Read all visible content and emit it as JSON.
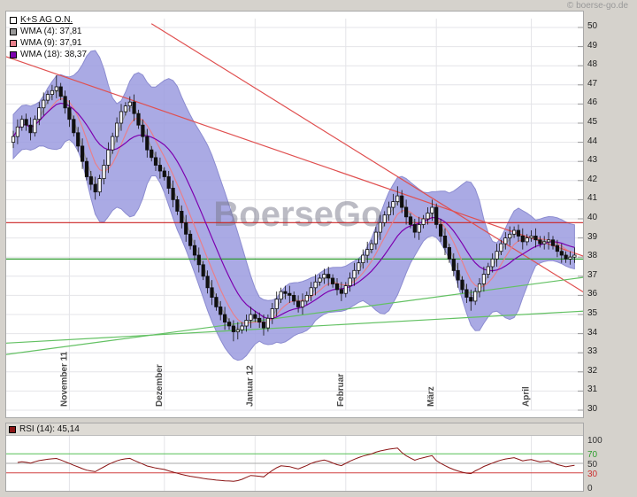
{
  "header": {
    "copyright": "© boerse-go.de"
  },
  "watermark": "BoerseGo",
  "legend": {
    "items": [
      {
        "label": "K+S AG O.N.",
        "color": "#ffffff"
      },
      {
        "label": "WMA (4): 37,81",
        "color": "#999999"
      },
      {
        "label": "WMA (9): 37,91",
        "color": "#e8808c"
      },
      {
        "label": "WMA (18): 38,37",
        "color": "#7d00af"
      }
    ]
  },
  "rsi_legend": {
    "label": "RSI (14): 45,14",
    "color": "#8b1515"
  },
  "chart_data": {
    "type": "candlestick",
    "title": "K+S AG O.N.",
    "y_axis": {
      "min": 30,
      "max": 50,
      "ticks": [
        50,
        49,
        48,
        47,
        46,
        45,
        44,
        43,
        42,
        41,
        40,
        39,
        38,
        37,
        36,
        35,
        34,
        33,
        32,
        31,
        30
      ]
    },
    "x_axis": {
      "months": [
        {
          "label": "November 11",
          "day": 13
        },
        {
          "label": "Dezember",
          "day": 35
        },
        {
          "label": "Januar 12",
          "day": 56
        },
        {
          "label": "Februar",
          "day": 77
        },
        {
          "label": "März",
          "day": 98
        },
        {
          "label": "April",
          "day": 120
        }
      ]
    },
    "band": {
      "kind": "volatility-envelope",
      "color": "#9b9bdf"
    },
    "wma": [
      {
        "period": 4,
        "color": "#999999",
        "value_label": "37,81"
      },
      {
        "period": 9,
        "color": "#e8808c",
        "value_label": "37,91"
      },
      {
        "period": 18,
        "color": "#7d00af",
        "value_label": "38,37"
      }
    ],
    "trendlines": [
      {
        "d1": -2,
        "p1": 39.8,
        "d2": 134,
        "p2": 39.8,
        "color": "#cc2222"
      },
      {
        "d1": -2,
        "p1": 48.5,
        "d2": 134,
        "p2": 37.9,
        "color": "#e05050"
      },
      {
        "d1": 32,
        "p1": 50.2,
        "d2": 134,
        "p2": 35.9,
        "color": "#e05050"
      },
      {
        "d1": -2,
        "p1": 37.9,
        "d2": 134,
        "p2": 37.9,
        "color": "#2d9b2d"
      },
      {
        "d1": -2,
        "p1": 33.5,
        "d2": 134,
        "p2": 35.2,
        "color": "#63c163"
      },
      {
        "d1": -2,
        "p1": 32.9,
        "d2": 134,
        "p2": 37.0,
        "color": "#63c163"
      }
    ],
    "rsi": {
      "period": 14,
      "current_label": "45,14",
      "ticks": [
        {
          "value": 100,
          "color": "#333333"
        },
        {
          "value": 70,
          "color": "#2e9e2e"
        },
        {
          "value": 50,
          "color": "#333333"
        },
        {
          "value": 30,
          "color": "#cc3030"
        },
        {
          "value": 0,
          "color": "#333333"
        }
      ],
      "lines": [
        {
          "value": 70,
          "color": "#57c057"
        },
        {
          "value": 50,
          "color": "#aaaaaa"
        },
        {
          "value": 30,
          "color": "#d04040"
        }
      ]
    },
    "ohlc": [
      [
        44.0,
        44.6,
        43.7,
        44.3
      ],
      [
        44.3,
        45.2,
        43.9,
        44.8
      ],
      [
        44.8,
        45.4,
        44.6,
        45.2
      ],
      [
        45.2,
        45.5,
        44.6,
        44.9
      ],
      [
        44.9,
        45.3,
        44.1,
        44.5
      ],
      [
        44.5,
        45.4,
        44.3,
        45.2
      ],
      [
        45.2,
        46.1,
        44.9,
        45.8
      ],
      [
        45.8,
        46.6,
        45.4,
        46.2
      ],
      [
        46.2,
        46.7,
        46.0,
        46.5
      ],
      [
        46.5,
        47.0,
        46.2,
        46.7
      ],
      [
        46.7,
        47.5,
        46.3,
        46.9
      ],
      [
        46.9,
        47.1,
        46.2,
        46.4
      ],
      [
        46.4,
        46.7,
        45.5,
        45.8
      ],
      [
        45.8,
        46.2,
        44.8,
        45.2
      ],
      [
        45.2,
        45.4,
        44.3,
        44.5
      ],
      [
        44.5,
        44.8,
        43.5,
        43.8
      ],
      [
        43.8,
        44.2,
        42.6,
        43.0
      ],
      [
        43.0,
        43.2,
        42.0,
        42.2
      ],
      [
        42.2,
        42.5,
        41.5,
        41.8
      ],
      [
        41.8,
        42.2,
        41.0,
        41.4
      ],
      [
        41.4,
        42.3,
        41.2,
        42.1
      ],
      [
        42.1,
        43.1,
        41.8,
        42.8
      ],
      [
        42.8,
        44.0,
        42.4,
        43.6
      ],
      [
        43.6,
        44.5,
        43.4,
        44.3
      ],
      [
        44.3,
        45.3,
        44.0,
        45.0
      ],
      [
        45.0,
        46.0,
        44.6,
        45.6
      ],
      [
        45.6,
        46.1,
        45.4,
        45.9
      ],
      [
        45.9,
        46.4,
        45.6,
        46.1
      ],
      [
        46.1,
        46.5,
        45.1,
        45.5
      ],
      [
        45.5,
        45.7,
        44.7,
        44.9
      ],
      [
        44.9,
        45.2,
        44.0,
        44.3
      ],
      [
        44.3,
        44.7,
        43.2,
        43.6
      ],
      [
        43.6,
        43.8,
        43.0,
        43.2
      ],
      [
        43.2,
        43.5,
        42.5,
        42.8
      ],
      [
        42.8,
        43.2,
        42.1,
        42.5
      ],
      [
        42.5,
        42.7,
        42.0,
        42.2
      ],
      [
        42.2,
        42.5,
        41.3,
        41.6
      ],
      [
        41.6,
        42.0,
        40.6,
        41.0
      ],
      [
        41.0,
        41.2,
        40.2,
        40.4
      ],
      [
        40.4,
        40.7,
        39.5,
        39.8
      ],
      [
        39.8,
        40.2,
        38.8,
        39.2
      ],
      [
        39.2,
        39.4,
        38.4,
        38.6
      ],
      [
        38.6,
        38.9,
        37.8,
        38.1
      ],
      [
        38.1,
        38.5,
        37.2,
        37.6
      ],
      [
        37.6,
        37.8,
        36.8,
        37.0
      ],
      [
        37.0,
        37.3,
        36.1,
        36.4
      ],
      [
        36.4,
        36.8,
        35.5,
        35.9
      ],
      [
        35.9,
        36.1,
        35.2,
        35.4
      ],
      [
        35.4,
        35.7,
        34.7,
        35.0
      ],
      [
        35.0,
        35.4,
        34.2,
        34.6
      ],
      [
        34.6,
        34.8,
        34.2,
        34.4
      ],
      [
        34.4,
        34.7,
        33.6,
        34.1
      ],
      [
        34.1,
        34.6,
        33.7,
        34.2
      ],
      [
        34.2,
        34.6,
        34.0,
        34.4
      ],
      [
        34.4,
        35.0,
        34.1,
        34.7
      ],
      [
        34.7,
        35.4,
        34.3,
        35.0
      ],
      [
        35.0,
        35.2,
        34.6,
        34.8
      ],
      [
        34.8,
        35.1,
        34.3,
        34.6
      ],
      [
        34.6,
        35.0,
        33.9,
        34.3
      ],
      [
        34.3,
        35.0,
        34.1,
        34.8
      ],
      [
        34.8,
        35.6,
        34.5,
        35.3
      ],
      [
        35.3,
        36.2,
        34.9,
        35.8
      ],
      [
        35.8,
        36.4,
        35.6,
        36.2
      ],
      [
        36.2,
        36.5,
        35.8,
        36.1
      ],
      [
        36.1,
        36.5,
        35.6,
        36.0
      ],
      [
        36.0,
        36.2,
        35.5,
        35.7
      ],
      [
        35.7,
        36.0,
        35.1,
        35.4
      ],
      [
        35.4,
        36.1,
        35.0,
        35.7
      ],
      [
        35.7,
        36.2,
        35.5,
        36.0
      ],
      [
        36.0,
        36.7,
        35.7,
        36.4
      ],
      [
        36.4,
        37.1,
        36.0,
        36.7
      ],
      [
        36.7,
        37.1,
        36.5,
        36.9
      ],
      [
        36.9,
        37.4,
        36.6,
        37.1
      ],
      [
        37.1,
        37.5,
        36.5,
        36.9
      ],
      [
        36.9,
        37.1,
        36.4,
        36.6
      ],
      [
        36.6,
        36.9,
        36.0,
        36.3
      ],
      [
        36.3,
        36.7,
        35.7,
        36.1
      ],
      [
        36.1,
        36.7,
        35.9,
        36.5
      ],
      [
        36.5,
        37.2,
        36.2,
        36.9
      ],
      [
        36.9,
        37.7,
        36.5,
        37.3
      ],
      [
        37.3,
        37.9,
        37.1,
        37.7
      ],
      [
        37.7,
        38.4,
        37.4,
        38.1
      ],
      [
        38.1,
        38.8,
        37.7,
        38.4
      ],
      [
        38.4,
        38.9,
        38.2,
        38.7
      ],
      [
        38.7,
        39.6,
        38.4,
        39.3
      ],
      [
        39.3,
        40.2,
        38.9,
        39.8
      ],
      [
        39.8,
        40.4,
        39.6,
        40.2
      ],
      [
        40.2,
        40.9,
        39.9,
        40.6
      ],
      [
        40.6,
        41.3,
        40.2,
        40.9
      ],
      [
        40.9,
        41.7,
        40.7,
        41.2
      ],
      [
        41.2,
        41.5,
        40.3,
        40.6
      ],
      [
        40.6,
        41.0,
        39.7,
        40.1
      ],
      [
        40.1,
        40.3,
        39.5,
        39.7
      ],
      [
        39.7,
        40.0,
        39.0,
        39.3
      ],
      [
        39.3,
        40.1,
        38.9,
        39.7
      ],
      [
        39.7,
        40.2,
        39.5,
        40.0
      ],
      [
        40.0,
        40.6,
        39.7,
        40.3
      ],
      [
        40.3,
        41.0,
        39.9,
        40.6
      ],
      [
        40.6,
        40.8,
        39.5,
        39.7
      ],
      [
        39.7,
        40.0,
        38.8,
        39.1
      ],
      [
        39.1,
        39.5,
        38.1,
        38.5
      ],
      [
        38.5,
        38.7,
        37.7,
        37.9
      ],
      [
        37.9,
        38.2,
        37.0,
        37.3
      ],
      [
        37.3,
        37.7,
        36.4,
        36.8
      ],
      [
        36.8,
        37.0,
        36.1,
        36.3
      ],
      [
        36.3,
        36.6,
        35.6,
        35.9
      ],
      [
        35.9,
        36.3,
        35.2,
        35.7
      ],
      [
        35.7,
        36.4,
        35.5,
        36.2
      ],
      [
        36.2,
        36.9,
        35.9,
        36.6
      ],
      [
        36.6,
        37.5,
        36.2,
        37.1
      ],
      [
        37.1,
        37.7,
        36.9,
        37.5
      ],
      [
        37.5,
        38.2,
        37.2,
        37.9
      ],
      [
        37.9,
        38.7,
        37.5,
        38.3
      ],
      [
        38.3,
        38.9,
        38.1,
        38.7
      ],
      [
        38.7,
        39.3,
        38.4,
        39.0
      ],
      [
        39.0,
        39.6,
        38.6,
        39.2
      ],
      [
        39.2,
        39.6,
        39.0,
        39.4
      ],
      [
        39.4,
        39.7,
        38.8,
        39.1
      ],
      [
        39.1,
        39.5,
        38.4,
        38.8
      ],
      [
        38.8,
        39.2,
        38.6,
        39.0
      ],
      [
        39.0,
        39.4,
        38.8,
        39.1
      ],
      [
        39.1,
        39.5,
        38.5,
        38.9
      ],
      [
        38.9,
        39.1,
        38.5,
        38.7
      ],
      [
        38.7,
        39.1,
        38.4,
        38.8
      ],
      [
        38.8,
        39.3,
        38.4,
        38.9
      ],
      [
        38.9,
        39.1,
        38.4,
        38.6
      ],
      [
        38.6,
        38.9,
        38.0,
        38.3
      ],
      [
        38.3,
        38.7,
        37.7,
        38.1
      ],
      [
        38.1,
        38.3,
        37.7,
        37.9
      ],
      [
        37.9,
        38.3,
        37.6,
        38.0
      ],
      [
        38.0,
        38.5,
        37.7,
        38.1
      ]
    ]
  }
}
